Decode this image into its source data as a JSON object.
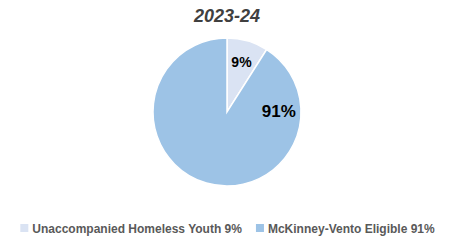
{
  "chart_data": {
    "type": "pie",
    "title": "2023-24",
    "categories": [
      "Unaccompanied Homeless Youth 9%",
      "McKinney-Vento Eligible 91%"
    ],
    "values": [
      9,
      91
    ],
    "value_labels": [
      "9%",
      "91%"
    ],
    "colors": [
      "#dae3f3",
      "#9dc3e6"
    ],
    "data_labels": true,
    "legend": "bottom"
  }
}
